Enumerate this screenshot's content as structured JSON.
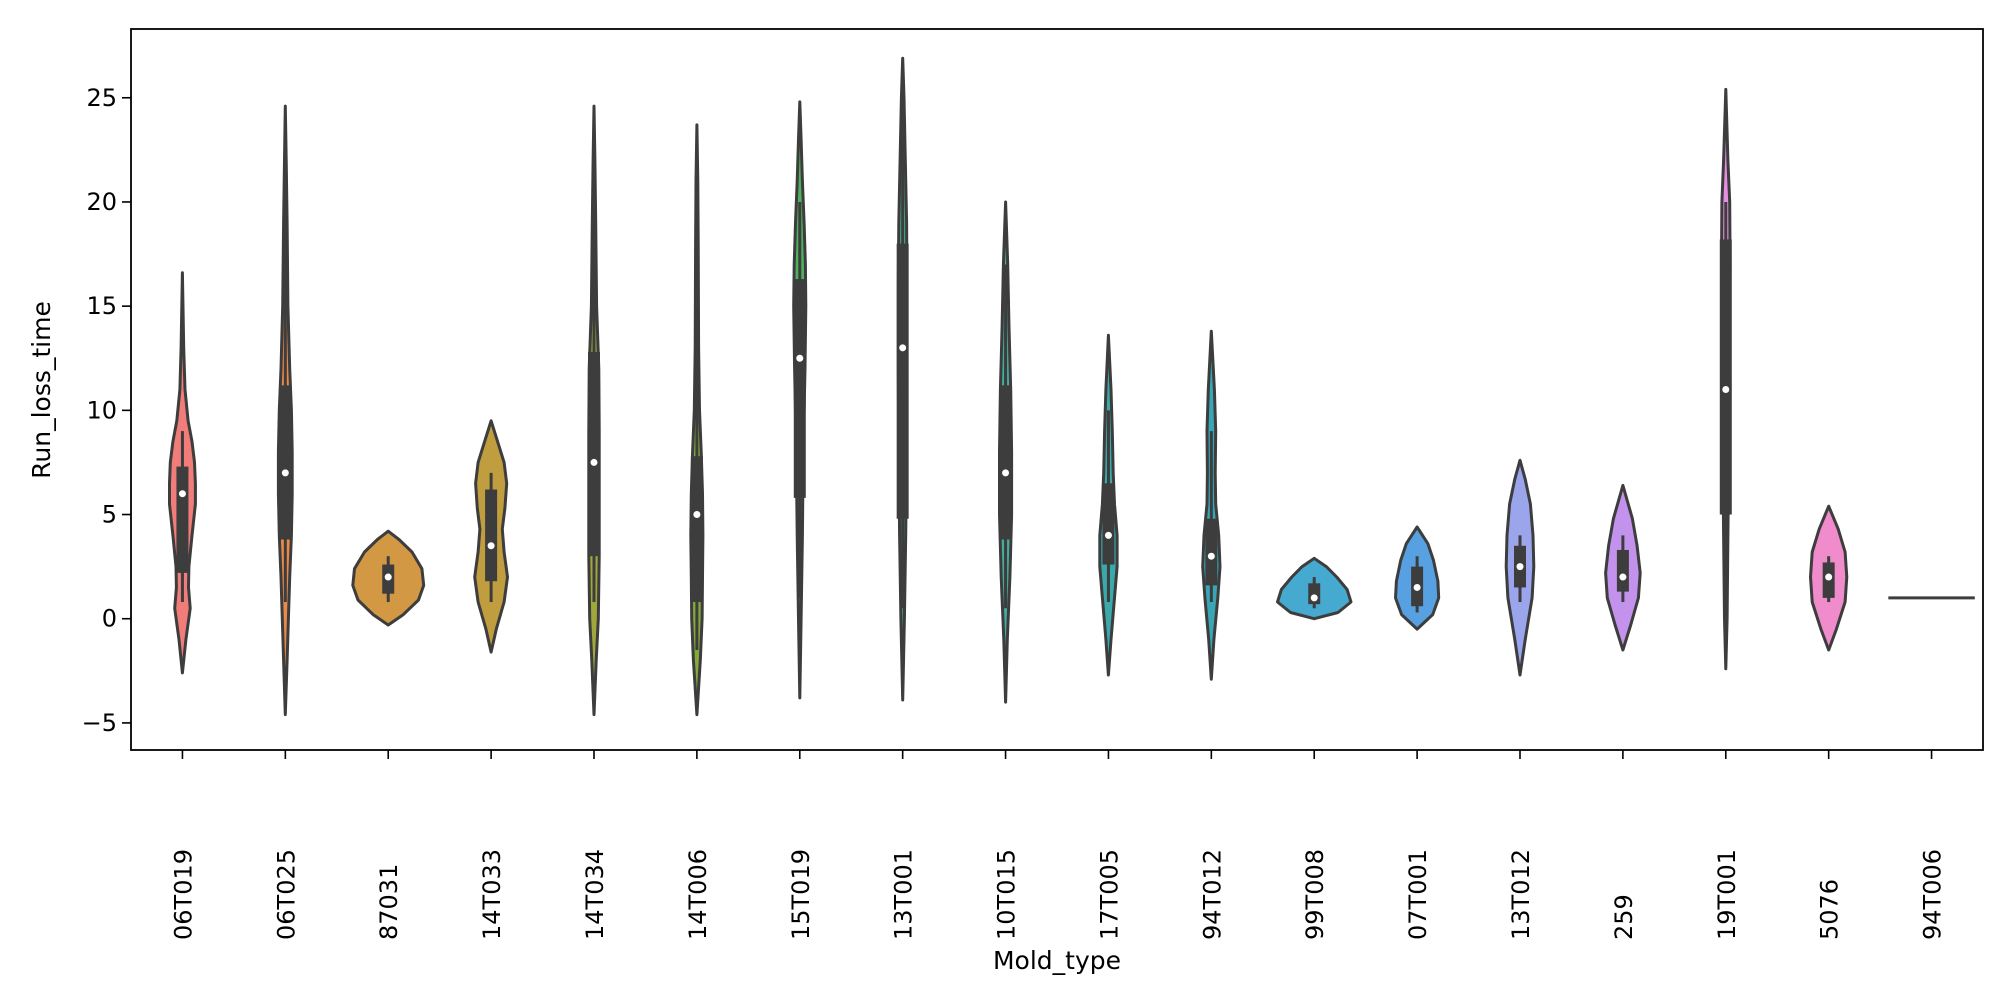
{
  "chart_data": {
    "type": "violin",
    "xlabel": "Mold_type",
    "ylabel": "Run_loss_time",
    "ylim": [
      -6.3,
      28.3
    ],
    "yticks": [
      -5,
      0,
      5,
      10,
      15,
      20,
      25
    ],
    "grid": false,
    "legend": "none",
    "categories": [
      "06T019",
      "06T025",
      "87031",
      "14T033",
      "14T034",
      "14T006",
      "15T019",
      "13T001",
      "10T015",
      "17T005",
      "94T012",
      "99T008",
      "07T001",
      "13T012",
      "259",
      "19T001",
      "5076",
      "94T006"
    ],
    "series": [
      {
        "category": "06T019",
        "color": "#f07d7a",
        "min": -2.6,
        "max": 16.6,
        "q1": 2.2,
        "median": 6.0,
        "q3": 7.3,
        "whisker_low": 0.8,
        "whisker_high": 9.0,
        "profile": [
          [
            -2.6,
            0
          ],
          [
            -1,
            0.08
          ],
          [
            0.5,
            0.18
          ],
          [
            1.5,
            0.14
          ],
          [
            2.5,
            0.15
          ],
          [
            4,
            0.22
          ],
          [
            5.5,
            0.3
          ],
          [
            6.5,
            0.3
          ],
          [
            7.5,
            0.28
          ],
          [
            8.5,
            0.22
          ],
          [
            9.5,
            0.13
          ],
          [
            11,
            0.06
          ],
          [
            13,
            0.03
          ],
          [
            16.6,
            0
          ]
        ]
      },
      {
        "category": "06T025",
        "color": "#e98a4b",
        "min": -4.6,
        "max": 24.6,
        "q1": 3.8,
        "median": 7.0,
        "q3": 11.2,
        "whisker_low": 0.8,
        "whisker_high": 20.0,
        "profile": [
          [
            -4.6,
            0
          ],
          [
            -2,
            0.04
          ],
          [
            0,
            0.07
          ],
          [
            2,
            0.1
          ],
          [
            4,
            0.14
          ],
          [
            6,
            0.16
          ],
          [
            8,
            0.16
          ],
          [
            10,
            0.14
          ],
          [
            12,
            0.1
          ],
          [
            15,
            0.06
          ],
          [
            19,
            0.04
          ],
          [
            22,
            0.02
          ],
          [
            24.6,
            0
          ]
        ]
      },
      {
        "category": "87031",
        "color": "#d39843",
        "min": -0.3,
        "max": 4.2,
        "q1": 1.2,
        "median": 2.0,
        "q3": 2.6,
        "whisker_low": 0.8,
        "whisker_high": 3.0,
        "profile": [
          [
            -0.3,
            0
          ],
          [
            0.2,
            0.35
          ],
          [
            0.9,
            0.7
          ],
          [
            1.6,
            0.82
          ],
          [
            2.4,
            0.78
          ],
          [
            3.2,
            0.55
          ],
          [
            3.8,
            0.25
          ],
          [
            4.2,
            0
          ]
        ]
      },
      {
        "category": "14T033",
        "color": "#c09d3e",
        "min": -1.6,
        "max": 9.5,
        "q1": 1.8,
        "median": 3.5,
        "q3": 6.2,
        "whisker_low": 0.8,
        "whisker_high": 7.0,
        "profile": [
          [
            -1.6,
            0
          ],
          [
            -0.5,
            0.12
          ],
          [
            0.8,
            0.3
          ],
          [
            2,
            0.38
          ],
          [
            3.2,
            0.3
          ],
          [
            4.3,
            0.26
          ],
          [
            5.3,
            0.32
          ],
          [
            6.5,
            0.36
          ],
          [
            7.5,
            0.3
          ],
          [
            8.5,
            0.15
          ],
          [
            9.5,
            0
          ]
        ]
      },
      {
        "category": "14T034",
        "color": "#a0a83c",
        "min": -4.6,
        "max": 24.6,
        "q1": 3.0,
        "median": 7.5,
        "q3": 12.8,
        "whisker_low": 0.8,
        "whisker_high": 20.0,
        "profile": [
          [
            -4.6,
            0
          ],
          [
            -2,
            0.05
          ],
          [
            0,
            0.1
          ],
          [
            3,
            0.12
          ],
          [
            6,
            0.12
          ],
          [
            9,
            0.12
          ],
          [
            12,
            0.11
          ],
          [
            15,
            0.06
          ],
          [
            19,
            0.04
          ],
          [
            22,
            0.02
          ],
          [
            24.6,
            0
          ]
        ]
      },
      {
        "category": "14T006",
        "color": "#84a93c",
        "min": -4.6,
        "max": 23.7,
        "q1": 0.8,
        "median": 5.0,
        "q3": 7.8,
        "whisker_low": -1.5,
        "whisker_high": 15.0,
        "profile": [
          [
            -4.6,
            0
          ],
          [
            -2,
            0.08
          ],
          [
            0,
            0.12
          ],
          [
            2,
            0.13
          ],
          [
            4,
            0.14
          ],
          [
            6,
            0.13
          ],
          [
            8,
            0.1
          ],
          [
            10,
            0.06
          ],
          [
            13,
            0.04
          ],
          [
            18,
            0.03
          ],
          [
            21,
            0.02
          ],
          [
            23.7,
            0
          ]
        ]
      },
      {
        "category": "15T019",
        "color": "#4fb15b",
        "min": -3.8,
        "max": 24.8,
        "q1": 5.8,
        "median": 12.5,
        "q3": 16.3,
        "whisker_low": 1.0,
        "whisker_high": 20.0,
        "profile": [
          [
            -3.8,
            0
          ],
          [
            0,
            0.03
          ],
          [
            4,
            0.06
          ],
          [
            8,
            0.08
          ],
          [
            12,
            0.12
          ],
          [
            15,
            0.14
          ],
          [
            17,
            0.13
          ],
          [
            19,
            0.1
          ],
          [
            21,
            0.06
          ],
          [
            23,
            0.03
          ],
          [
            24.8,
            0
          ]
        ]
      },
      {
        "category": "13T001",
        "color": "#44ae90",
        "min": -3.9,
        "max": 26.9,
        "q1": 4.8,
        "median": 13.0,
        "q3": 18.0,
        "whisker_low": 0.5,
        "whisker_high": 25.0,
        "profile": [
          [
            -3.9,
            0
          ],
          [
            0,
            0.04
          ],
          [
            4,
            0.07
          ],
          [
            8,
            0.09
          ],
          [
            12,
            0.1
          ],
          [
            16,
            0.1
          ],
          [
            19,
            0.09
          ],
          [
            22,
            0.06
          ],
          [
            25,
            0.03
          ],
          [
            26.9,
            0
          ]
        ]
      },
      {
        "category": "10T015",
        "color": "#46ad9d",
        "min": -4.0,
        "max": 20.0,
        "q1": 3.8,
        "median": 7.0,
        "q3": 11.2,
        "whisker_low": 0.5,
        "whisker_high": 17.0,
        "profile": [
          [
            -4.0,
            0
          ],
          [
            -1,
            0.04
          ],
          [
            2,
            0.1
          ],
          [
            5,
            0.14
          ],
          [
            8,
            0.14
          ],
          [
            11,
            0.12
          ],
          [
            14,
            0.08
          ],
          [
            17,
            0.05
          ],
          [
            20,
            0
          ]
        ]
      },
      {
        "category": "17T005",
        "color": "#3aa9aa",
        "min": -2.7,
        "max": 13.6,
        "q1": 2.6,
        "median": 4.0,
        "q3": 6.5,
        "whisker_low": 0.8,
        "whisker_high": 10.0,
        "profile": [
          [
            -2.7,
            0
          ],
          [
            -1,
            0.06
          ],
          [
            1,
            0.14
          ],
          [
            2.5,
            0.2
          ],
          [
            4,
            0.2
          ],
          [
            5.5,
            0.14
          ],
          [
            7,
            0.11
          ],
          [
            9,
            0.09
          ],
          [
            11,
            0.06
          ],
          [
            13.6,
            0
          ]
        ]
      },
      {
        "category": "94T012",
        "color": "#39a6b5",
        "min": -2.9,
        "max": 13.8,
        "q1": 1.6,
        "median": 3.0,
        "q3": 4.8,
        "whisker_low": 0.8,
        "whisker_high": 9.0,
        "profile": [
          [
            -2.9,
            0
          ],
          [
            -1,
            0.06
          ],
          [
            1,
            0.15
          ],
          [
            2.5,
            0.2
          ],
          [
            4,
            0.17
          ],
          [
            5.5,
            0.1
          ],
          [
            7,
            0.09
          ],
          [
            9,
            0.1
          ],
          [
            11,
            0.07
          ],
          [
            13.8,
            0
          ]
        ]
      },
      {
        "category": "99T008",
        "color": "#46a9d0",
        "min": 0.0,
        "max": 2.9,
        "q1": 0.7,
        "median": 1.0,
        "q3": 1.7,
        "whisker_low": 0.5,
        "whisker_high": 2.0,
        "profile": [
          [
            0.0,
            0
          ],
          [
            0.3,
            0.55
          ],
          [
            0.8,
            0.85
          ],
          [
            1.4,
            0.76
          ],
          [
            2.0,
            0.52
          ],
          [
            2.5,
            0.28
          ],
          [
            2.9,
            0
          ]
        ]
      },
      {
        "category": "07T001",
        "color": "#57a1e3",
        "min": -0.5,
        "max": 4.4,
        "q1": 0.6,
        "median": 1.5,
        "q3": 2.5,
        "whisker_low": 0.3,
        "whisker_high": 3.0,
        "profile": [
          [
            -0.5,
            0
          ],
          [
            0.2,
            0.36
          ],
          [
            1.0,
            0.5
          ],
          [
            1.8,
            0.48
          ],
          [
            2.8,
            0.38
          ],
          [
            3.6,
            0.25
          ],
          [
            4.4,
            0
          ]
        ]
      },
      {
        "category": "13T012",
        "color": "#9aa5ec",
        "min": -2.7,
        "max": 7.6,
        "q1": 1.5,
        "median": 2.5,
        "q3": 3.5,
        "whisker_low": 0.8,
        "whisker_high": 4.0,
        "profile": [
          [
            -2.7,
            0
          ],
          [
            -1,
            0.12
          ],
          [
            1,
            0.28
          ],
          [
            2.5,
            0.32
          ],
          [
            4,
            0.3
          ],
          [
            5.5,
            0.24
          ],
          [
            6.7,
            0.12
          ],
          [
            7.6,
            0
          ]
        ]
      },
      {
        "category": "259",
        "color": "#c392ec",
        "min": -1.5,
        "max": 6.4,
        "q1": 1.3,
        "median": 2.0,
        "q3": 3.3,
        "whisker_low": 0.8,
        "whisker_high": 4.0,
        "profile": [
          [
            -1.5,
            0
          ],
          [
            -0.3,
            0.18
          ],
          [
            1,
            0.36
          ],
          [
            2.2,
            0.4
          ],
          [
            3.5,
            0.33
          ],
          [
            4.8,
            0.22
          ],
          [
            6.4,
            0
          ]
        ]
      },
      {
        "category": "19T001",
        "color": "#e58ee3",
        "min": -2.4,
        "max": 25.4,
        "q1": 5.0,
        "median": 11.0,
        "q3": 18.2,
        "whisker_low": 0.5,
        "whisker_high": 20.0,
        "profile": [
          [
            -2.4,
            0
          ],
          [
            0,
            0.03
          ],
          [
            4,
            0.05
          ],
          [
            8,
            0.07
          ],
          [
            11,
            0.1
          ],
          [
            14,
            0.09
          ],
          [
            17,
            0.1
          ],
          [
            20,
            0.09
          ],
          [
            22,
            0.05
          ],
          [
            25.4,
            0
          ]
        ]
      },
      {
        "category": "5076",
        "color": "#f08ccc",
        "min": -1.5,
        "max": 5.4,
        "q1": 1.0,
        "median": 2.0,
        "q3": 2.7,
        "whisker_low": 0.8,
        "whisker_high": 3.0,
        "profile": [
          [
            -1.5,
            0
          ],
          [
            -0.5,
            0.18
          ],
          [
            0.8,
            0.38
          ],
          [
            2,
            0.42
          ],
          [
            3.2,
            0.38
          ],
          [
            4.3,
            0.22
          ],
          [
            5.4,
            0
          ]
        ]
      },
      {
        "category": "94T006",
        "color": "#f48fb1",
        "flat_value": 1.0
      }
    ]
  }
}
